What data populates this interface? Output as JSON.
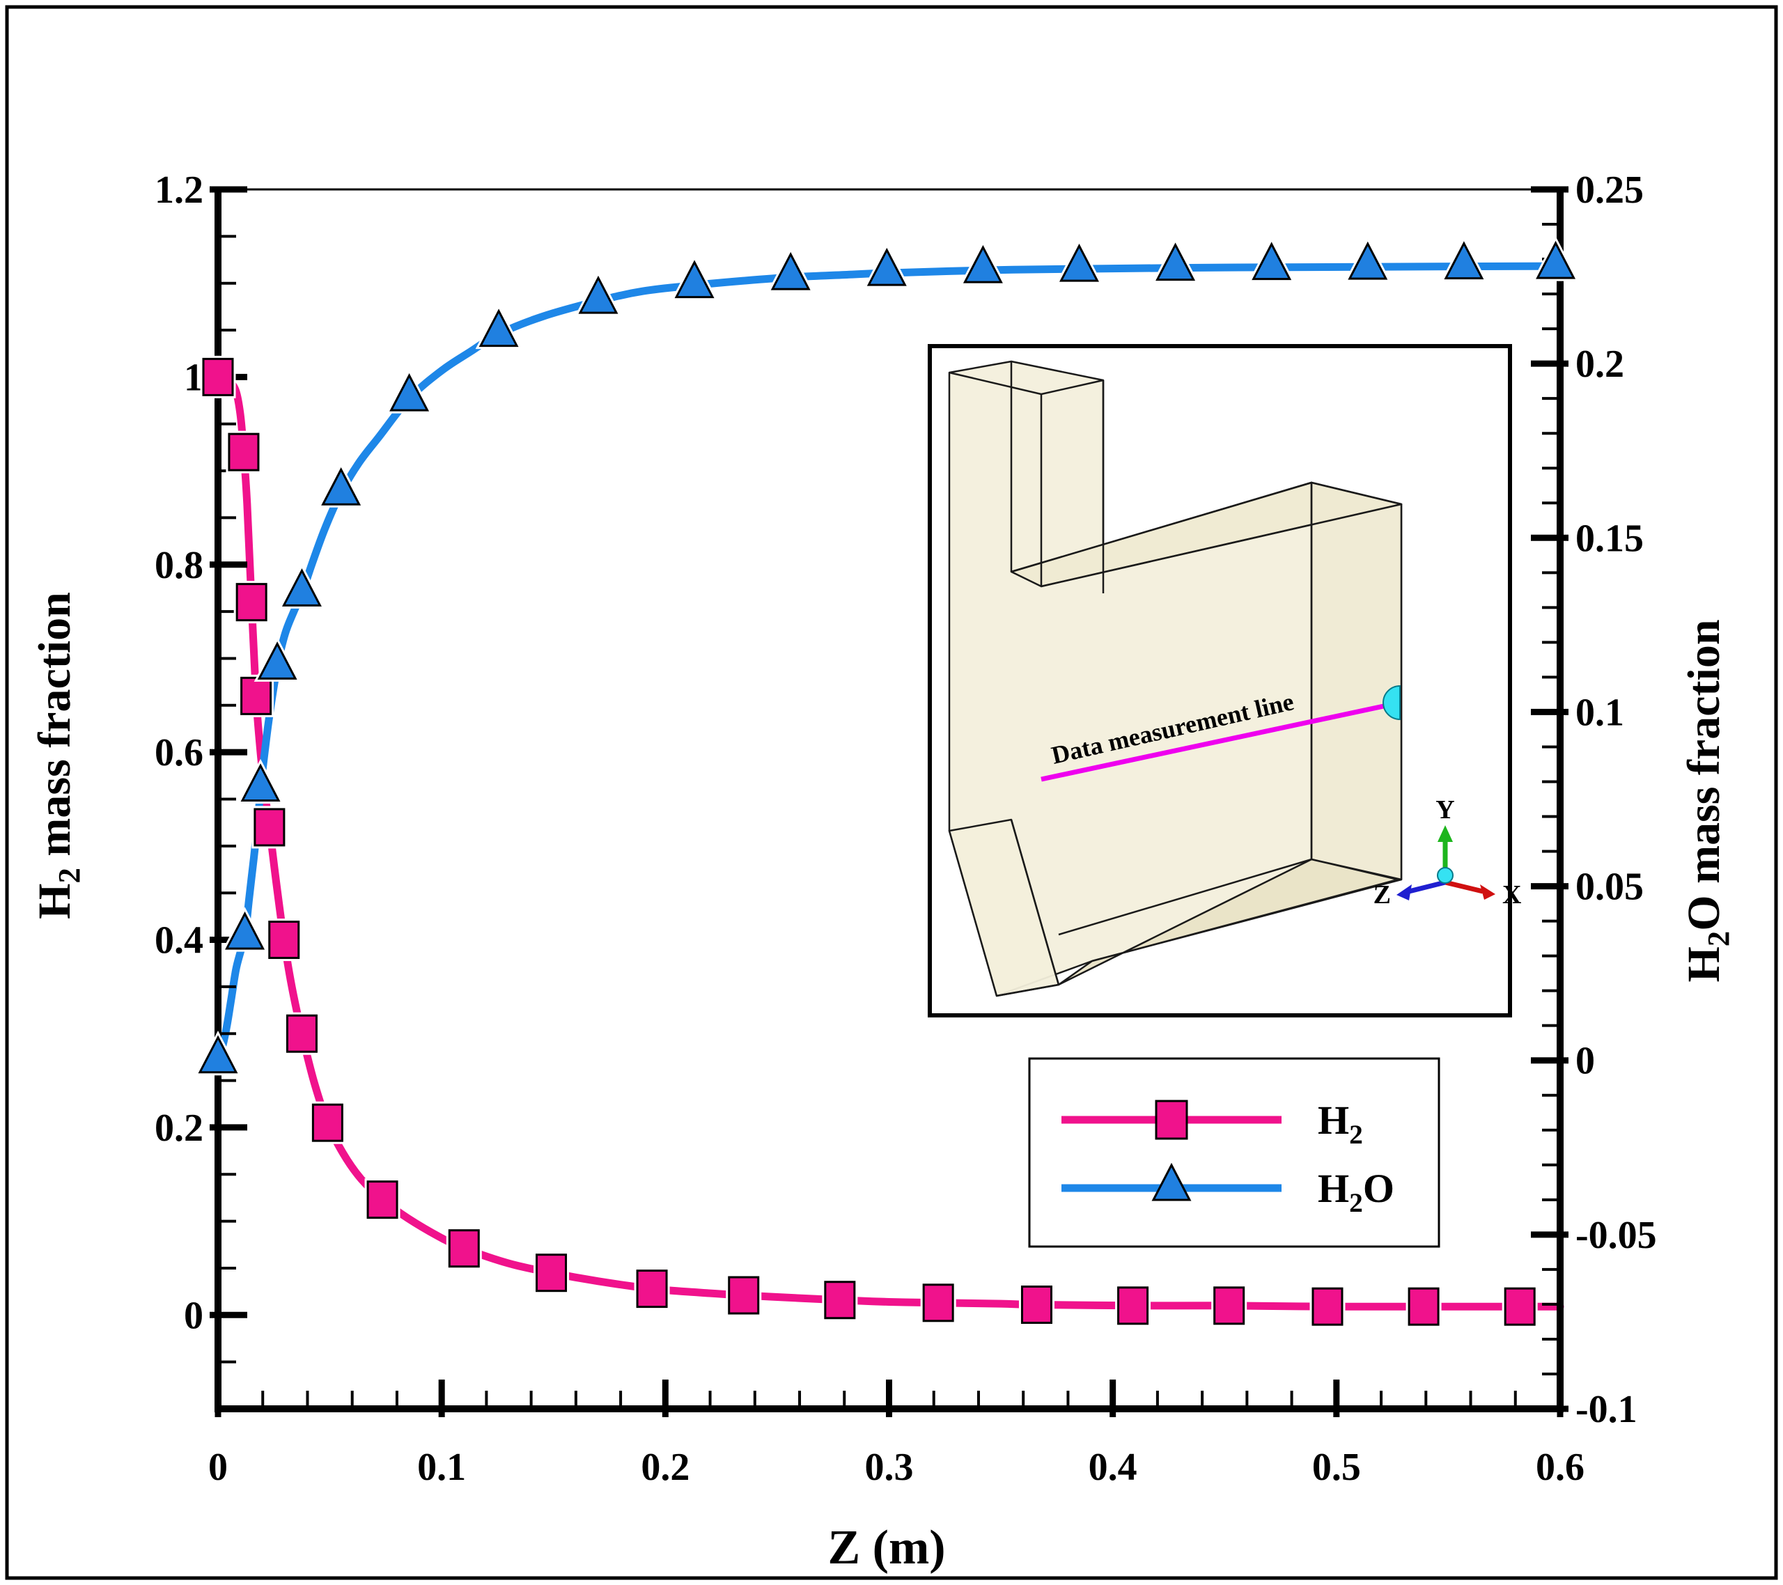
{
  "figure": {
    "background": "#ffffff",
    "border_color": "#000000"
  },
  "chart_data": {
    "type": "line",
    "xlabel": "Z (m)",
    "x_axis": {
      "range": [
        0,
        0.6
      ],
      "major_ticks": [
        0,
        0.1,
        0.2,
        0.3,
        0.4,
        0.5,
        0.6
      ],
      "tick_labels": [
        "0",
        "0.1",
        "0.2",
        "0.3",
        "0.4",
        "0.5",
        "0.6"
      ],
      "minor_step": 0.02
    },
    "left_axis": {
      "title": {
        "before": "H",
        "sub": "2",
        "after": " mass fraction"
      },
      "range": [
        -0.1,
        1.2
      ],
      "major_ticks": [
        1.2,
        1.0,
        0.8,
        0.6,
        0.4,
        0.2,
        0
      ],
      "tick_labels": [
        "1.2",
        "1",
        "0.8",
        "0.6",
        "0.4",
        "0.2",
        "0"
      ],
      "minor_step": 0.05
    },
    "right_axis": {
      "title": {
        "before": "H",
        "sub": "2",
        "after": "O mass fraction"
      },
      "range": [
        -0.1,
        0.25
      ],
      "major_ticks": [
        0.25,
        0.2,
        0.15,
        0.1,
        0.05,
        0,
        -0.05,
        -0.1
      ],
      "tick_labels": [
        "0.25",
        "0.2",
        "0.15",
        "0.1",
        "0.05",
        "0",
        "-0.05",
        "-0.1"
      ],
      "minor_step": 0.01
    },
    "grid": false,
    "legend_position": "lower right",
    "series": [
      {
        "id": "h2",
        "name": "H2",
        "axis": "left",
        "color": "#F0128C",
        "marker": "square",
        "marker_fill": "#F0128C",
        "marker_points": [
          [
            0,
            1.0
          ],
          [
            0.0115,
            0.92
          ],
          [
            0.015,
            0.76
          ],
          [
            0.017,
            0.66
          ],
          [
            0.023,
            0.52
          ],
          [
            0.0295,
            0.4
          ],
          [
            0.0375,
            0.3
          ],
          [
            0.049,
            0.205
          ],
          [
            0.0735,
            0.123
          ],
          [
            0.11,
            0.071
          ],
          [
            0.149,
            0.045
          ],
          [
            0.194,
            0.028
          ],
          [
            0.235,
            0.021
          ],
          [
            0.278,
            0.016
          ],
          [
            0.322,
            0.013
          ],
          [
            0.366,
            0.011
          ],
          [
            0.409,
            0.01
          ],
          [
            0.452,
            0.01
          ],
          [
            0.496,
            0.009
          ],
          [
            0.539,
            0.009
          ],
          [
            0.582,
            0.009
          ]
        ],
        "curve_points": [
          [
            0,
            1.0
          ],
          [
            0.005,
            0.995
          ],
          [
            0.008,
            0.985
          ],
          [
            0.01,
            0.96
          ],
          [
            0.0115,
            0.92
          ],
          [
            0.013,
            0.865
          ],
          [
            0.015,
            0.76
          ],
          [
            0.017,
            0.66
          ],
          [
            0.019,
            0.6
          ],
          [
            0.021,
            0.556
          ],
          [
            0.023,
            0.52
          ],
          [
            0.026,
            0.462
          ],
          [
            0.0295,
            0.4
          ],
          [
            0.033,
            0.35
          ],
          [
            0.0375,
            0.3
          ],
          [
            0.043,
            0.248
          ],
          [
            0.049,
            0.205
          ],
          [
            0.056,
            0.172
          ],
          [
            0.064,
            0.145
          ],
          [
            0.0735,
            0.123
          ],
          [
            0.085,
            0.103
          ],
          [
            0.1,
            0.082
          ],
          [
            0.11,
            0.071
          ],
          [
            0.13,
            0.055
          ],
          [
            0.149,
            0.045
          ],
          [
            0.17,
            0.036
          ],
          [
            0.194,
            0.028
          ],
          [
            0.215,
            0.024
          ],
          [
            0.235,
            0.021
          ],
          [
            0.26,
            0.018
          ],
          [
            0.278,
            0.016
          ],
          [
            0.3,
            0.014
          ],
          [
            0.322,
            0.013
          ],
          [
            0.35,
            0.012
          ],
          [
            0.366,
            0.011
          ],
          [
            0.41,
            0.01
          ],
          [
            0.45,
            0.01
          ],
          [
            0.5,
            0.009
          ],
          [
            0.55,
            0.009
          ],
          [
            0.6,
            0.009
          ]
        ]
      },
      {
        "id": "h2o",
        "name": "H2O",
        "axis": "right",
        "color": "#1E87E8",
        "marker": "triangle",
        "marker_fill": "#2080E0",
        "marker_points": [
          [
            0,
            0
          ],
          [
            0.012,
            0.0355
          ],
          [
            0.019,
            0.078
          ],
          [
            0.0265,
            0.113
          ],
          [
            0.0375,
            0.134
          ],
          [
            0.055,
            0.163
          ],
          [
            0.0855,
            0.19
          ],
          [
            0.1255,
            0.2085
          ],
          [
            0.17,
            0.218
          ],
          [
            0.213,
            0.2225
          ],
          [
            0.256,
            0.2248
          ],
          [
            0.299,
            0.226
          ],
          [
            0.342,
            0.2268
          ],
          [
            0.385,
            0.2272
          ],
          [
            0.428,
            0.2275
          ],
          [
            0.471,
            0.2277
          ],
          [
            0.514,
            0.2278
          ],
          [
            0.557,
            0.2279
          ],
          [
            0.598,
            0.228
          ]
        ],
        "curve_points": [
          [
            0,
            0
          ],
          [
            0.002,
            0.004
          ],
          [
            0.004,
            0.01
          ],
          [
            0.006,
            0.018
          ],
          [
            0.008,
            0.026
          ],
          [
            0.01,
            0.031
          ],
          [
            0.012,
            0.0355
          ],
          [
            0.014,
            0.047
          ],
          [
            0.016,
            0.058
          ],
          [
            0.018,
            0.07
          ],
          [
            0.019,
            0.078
          ],
          [
            0.021,
            0.089
          ],
          [
            0.023,
            0.099
          ],
          [
            0.0265,
            0.113
          ],
          [
            0.03,
            0.1225
          ],
          [
            0.034,
            0.129
          ],
          [
            0.0375,
            0.134
          ],
          [
            0.042,
            0.1425
          ],
          [
            0.048,
            0.153
          ],
          [
            0.055,
            0.163
          ],
          [
            0.063,
            0.1715
          ],
          [
            0.072,
            0.179
          ],
          [
            0.0855,
            0.19
          ],
          [
            0.1,
            0.198
          ],
          [
            0.113,
            0.2035
          ],
          [
            0.1255,
            0.2085
          ],
          [
            0.145,
            0.2135
          ],
          [
            0.17,
            0.218
          ],
          [
            0.19,
            0.2208
          ],
          [
            0.213,
            0.2225
          ],
          [
            0.235,
            0.2238
          ],
          [
            0.256,
            0.2248
          ],
          [
            0.28,
            0.2255
          ],
          [
            0.299,
            0.226
          ],
          [
            0.342,
            0.2268
          ],
          [
            0.385,
            0.2272
          ],
          [
            0.45,
            0.2276
          ],
          [
            0.52,
            0.2278
          ],
          [
            0.6,
            0.228
          ]
        ]
      }
    ],
    "legend": {
      "entries": [
        {
          "series": "h2",
          "label": {
            "before": "H",
            "sub": "2",
            "after": ""
          }
        },
        {
          "series": "h2o",
          "label": {
            "before": "H",
            "sub": "2",
            "after": "O"
          }
        }
      ]
    }
  },
  "inset": {
    "label": "Data measurement line",
    "line_color": "#EE00EE",
    "probe_color": "#35E2F2",
    "face_color": "#F3EFDB",
    "face_color_mid": "#EFEAD2",
    "face_color_dark": "#E9E3C6",
    "triad": {
      "x": {
        "label": "X",
        "color": "#D01010"
      },
      "y": {
        "label": "Y",
        "color": "#1DB51D"
      },
      "z": {
        "label": "Z",
        "color": "#1F1FD0"
      }
    }
  }
}
